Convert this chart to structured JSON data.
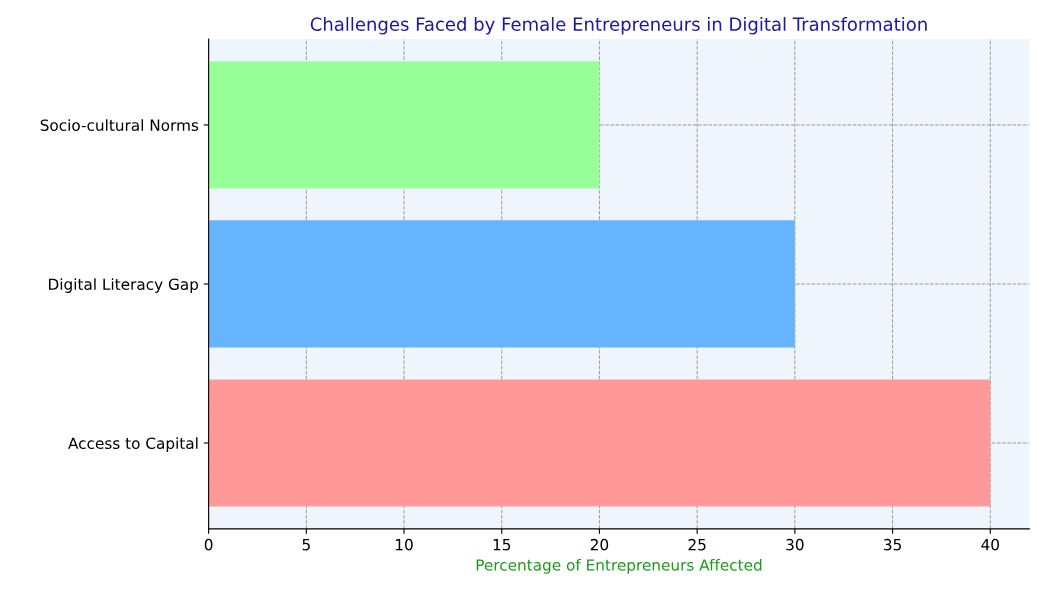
{
  "chart_data": {
    "type": "bar",
    "orientation": "horizontal",
    "title": "Challenges Faced by Female Entrepreneurs in Digital Transformation",
    "xlabel": "Percentage of Entrepreneurs Affected",
    "categories": [
      "Socio-cultural Norms",
      "Digital Literacy Gap",
      "Access to Capital"
    ],
    "values": [
      20,
      30,
      40
    ],
    "colors": [
      "#99ff99",
      "#66b3ff",
      "#ff9999"
    ],
    "xlim": [
      0,
      42
    ],
    "xticks": [
      0,
      5,
      10,
      15,
      20,
      25,
      30,
      35,
      40
    ],
    "grid": true,
    "line_style": "dashed"
  }
}
